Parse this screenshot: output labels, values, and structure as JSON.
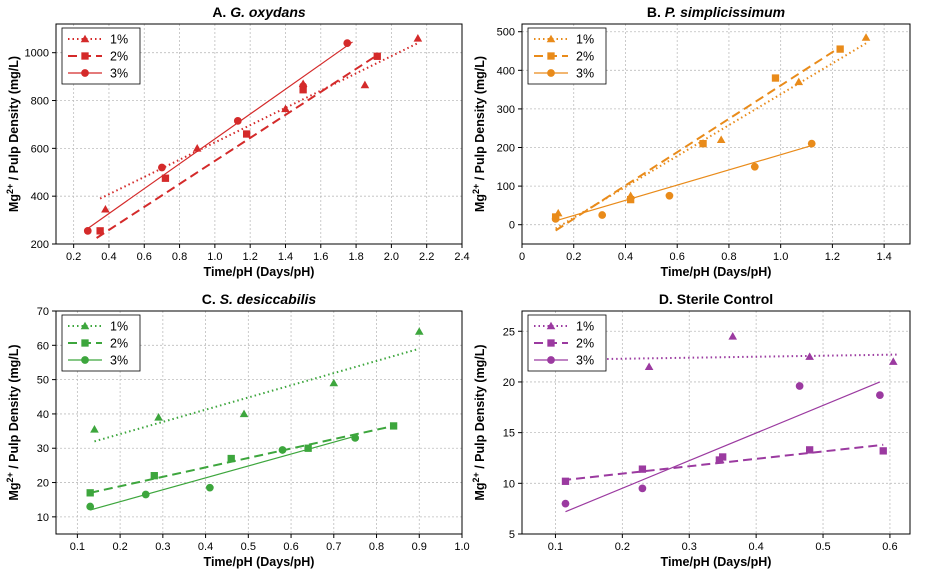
{
  "chart_data": [
    {
      "type": "scatter",
      "title_prefix": "A.",
      "title_italic": "G. oxydans",
      "xlabel": "Time/pH (Days/pH)",
      "ylabel": "Mg2+ / Pulp Density (mg/L)",
      "xlim": [
        0.1,
        2.4
      ],
      "ylim": [
        200,
        1120
      ],
      "xticks": [
        0.2,
        0.4,
        0.6,
        0.8,
        1.0,
        1.2,
        1.4,
        1.6,
        1.8,
        2.0,
        2.2,
        2.4
      ],
      "xtick_labels": [
        "0.2",
        "0.4",
        "0.6",
        "0.8",
        "1.0",
        "1.2",
        "1.4",
        "1.6",
        "1.8",
        "2.0",
        "2.2",
        "2.4"
      ],
      "yticks": [
        200,
        400,
        600,
        800,
        1000
      ],
      "ytick_labels": [
        "200",
        "400",
        "600",
        "800",
        "1000"
      ],
      "color": "#d42a2a",
      "grid": true,
      "legend_position": "top-left",
      "series": [
        {
          "name": "1%",
          "marker": "triangle",
          "dash": "1.5,3",
          "x": [
            0.38,
            0.9,
            1.4,
            1.5,
            1.85,
            2.15
          ],
          "y": [
            345,
            600,
            765,
            870,
            865,
            1060
          ],
          "fit": [
            [
              0.35,
              390
            ],
            [
              2.15,
              1040
            ]
          ]
        },
        {
          "name": "2%",
          "marker": "square",
          "dash": "9,5",
          "x": [
            0.35,
            0.72,
            1.18,
            1.5,
            1.92
          ],
          "y": [
            255,
            475,
            660,
            845,
            985
          ],
          "fit": [
            [
              0.33,
              225
            ],
            [
              1.92,
              990
            ]
          ]
        },
        {
          "name": "3%",
          "marker": "circle",
          "dash": "",
          "x": [
            0.28,
            0.7,
            1.13,
            1.5,
            1.75
          ],
          "y": [
            255,
            520,
            715,
            860,
            1040
          ],
          "fit": [
            [
              0.28,
              265
            ],
            [
              1.78,
              1045
            ]
          ]
        }
      ]
    },
    {
      "type": "scatter",
      "title_prefix": "B.",
      "title_italic": "P. simplicissimum",
      "xlabel": "Time/pH (Days/pH)",
      "ylabel": "Mg2+ / Pulp Density (mg/L)",
      "xlim": [
        0.0,
        1.5
      ],
      "ylim": [
        -50,
        520
      ],
      "xticks": [
        0.0,
        0.2,
        0.4,
        0.6,
        0.8,
        1.0,
        1.2,
        1.4
      ],
      "xtick_labels": [
        "0",
        "0.2",
        "0.4",
        "0.6",
        "0.8",
        "1.0",
        "1.2",
        "1.4"
      ],
      "yticks": [
        0,
        100,
        200,
        300,
        400,
        500
      ],
      "ytick_labels": [
        "0",
        "100",
        "200",
        "300",
        "400",
        "500"
      ],
      "color": "#e98b1a",
      "grid": true,
      "legend_position": "top-left",
      "series": [
        {
          "name": "1%",
          "marker": "triangle",
          "dash": "1.5,3",
          "x": [
            0.14,
            0.42,
            0.77,
            1.07,
            1.33
          ],
          "y": [
            30,
            75,
            220,
            370,
            485
          ],
          "fit": [
            [
              0.13,
              -10
            ],
            [
              1.33,
              470
            ]
          ]
        },
        {
          "name": "2%",
          "marker": "square",
          "dash": "9,5",
          "x": [
            0.13,
            0.42,
            0.7,
            0.98,
            1.23
          ],
          "y": [
            20,
            65,
            210,
            380,
            455
          ],
          "fit": [
            [
              0.13,
              -15
            ],
            [
              1.23,
              460
            ]
          ]
        },
        {
          "name": "3%",
          "marker": "circle",
          "dash": "",
          "x": [
            0.13,
            0.31,
            0.57,
            0.9,
            1.12
          ],
          "y": [
            15,
            25,
            75,
            150,
            210
          ],
          "fit": [
            [
              0.13,
              10
            ],
            [
              1.12,
              205
            ]
          ]
        }
      ]
    },
    {
      "type": "scatter",
      "title_prefix": "C.",
      "title_italic": "S. desiccabilis",
      "xlabel": "Time/pH (Days/pH)",
      "ylabel": "Mg2+ / Pulp Density (mg/L)",
      "xlim": [
        0.05,
        1.0
      ],
      "ylim": [
        5,
        70
      ],
      "xticks": [
        0.1,
        0.2,
        0.3,
        0.4,
        0.5,
        0.6,
        0.7,
        0.8,
        0.9,
        1.0
      ],
      "xtick_labels": [
        "0.1",
        "0.2",
        "0.3",
        "0.4",
        "0.5",
        "0.6",
        "0.7",
        "0.8",
        "0.9",
        "1.0"
      ],
      "yticks": [
        10,
        20,
        30,
        40,
        50,
        60,
        70
      ],
      "ytick_labels": [
        "10",
        "20",
        "30",
        "40",
        "50",
        "60",
        "70"
      ],
      "color": "#3da63d",
      "grid": true,
      "legend_position": "top-left",
      "series": [
        {
          "name": "1%",
          "marker": "triangle",
          "dash": "1.5,3",
          "x": [
            0.14,
            0.29,
            0.49,
            0.7,
            0.9
          ],
          "y": [
            35.5,
            39,
            40,
            49,
            64
          ],
          "fit": [
            [
              0.14,
              32
            ],
            [
              0.9,
              59
            ]
          ]
        },
        {
          "name": "2%",
          "marker": "square",
          "dash": "9,5",
          "x": [
            0.13,
            0.28,
            0.46,
            0.64,
            0.84
          ],
          "y": [
            17,
            22,
            27,
            30,
            36.5
          ],
          "fit": [
            [
              0.13,
              17
            ],
            [
              0.84,
              36.5
            ]
          ]
        },
        {
          "name": "3%",
          "marker": "circle",
          "dash": "",
          "x": [
            0.13,
            0.26,
            0.41,
            0.58,
            0.75
          ],
          "y": [
            13,
            16.5,
            18.5,
            29.5,
            33
          ],
          "fit": [
            [
              0.13,
              12
            ],
            [
              0.75,
              33.5
            ]
          ]
        }
      ]
    },
    {
      "type": "scatter",
      "title_prefix": "D.",
      "title_italic": "",
      "title_rest": "Sterile Control",
      "xlabel": "Time/pH (Days/pH)",
      "ylabel": "Mg2+ / Pulp Density (mg/L)",
      "xlim": [
        0.05,
        0.63
      ],
      "ylim": [
        5,
        27
      ],
      "xticks": [
        0.1,
        0.2,
        0.3,
        0.4,
        0.5,
        0.6
      ],
      "xtick_labels": [
        "0.1",
        "0.2",
        "0.3",
        "0.4",
        "0.5",
        "0.6"
      ],
      "yticks": [
        5,
        10,
        15,
        20,
        25
      ],
      "ytick_labels": [
        "5",
        "10",
        "15",
        "20",
        "25"
      ],
      "color": "#9b3aa0",
      "grid": true,
      "legend_position": "top-left",
      "series": [
        {
          "name": "1%",
          "marker": "triangle",
          "dash": "1.5,3",
          "x": [
            0.24,
            0.365,
            0.48,
            0.605
          ],
          "y": [
            21.5,
            24.5,
            22.5,
            22
          ],
          "fit": [
            [
              0.11,
              22.2
            ],
            [
              0.61,
              22.7
            ]
          ]
        },
        {
          "name": "2%",
          "marker": "square",
          "dash": "9,5",
          "x": [
            0.115,
            0.23,
            0.345,
            0.35,
            0.48,
            0.59
          ],
          "y": [
            10.2,
            11.4,
            12.3,
            12.6,
            13.3,
            13.2
          ],
          "fit": [
            [
              0.11,
              10.3
            ],
            [
              0.59,
              13.8
            ]
          ]
        },
        {
          "name": "3%",
          "marker": "circle",
          "dash": "",
          "x": [
            0.115,
            0.23,
            0.465,
            0.585
          ],
          "y": [
            8,
            9.5,
            19.6,
            18.7
          ],
          "fit": [
            [
              0.115,
              7.2
            ],
            [
              0.585,
              20
            ]
          ]
        }
      ]
    }
  ]
}
